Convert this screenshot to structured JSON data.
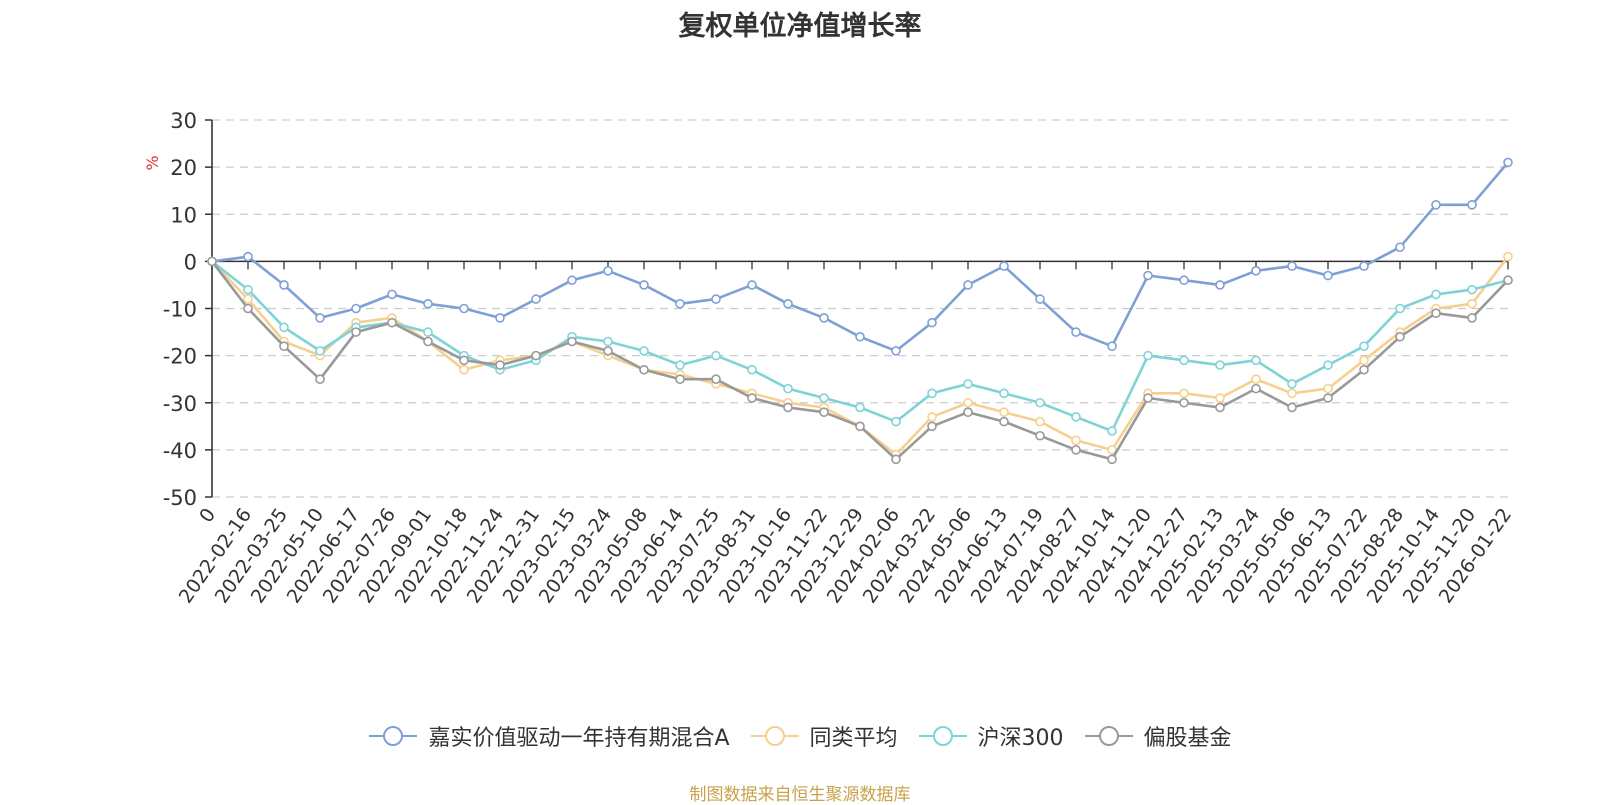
{
  "chart_data": {
    "type": "line",
    "title": "复权单位净值增长率",
    "ylabel": "%",
    "xlabel": "",
    "ylim": [
      -50,
      30
    ],
    "yticks": [
      30,
      20,
      10,
      0,
      -10,
      -20,
      -30,
      -40,
      -50
    ],
    "x_tick_labels": [
      "0",
      "2022-02-16",
      "2022-03-25",
      "2022-05-10",
      "2022-06-17",
      "2022-07-26",
      "2022-09-01",
      "2022-10-18",
      "2022-11-24",
      "2022-12-31",
      "2023-02-15",
      "2023-03-24",
      "2023-05-08",
      "2023-06-14",
      "2023-07-25",
      "2023-08-31",
      "2023-10-16",
      "2023-11-22",
      "2023-12-29",
      "2024-02-06",
      "2024-03-22",
      "2024-05-06",
      "2024-06-13",
      "2024-07-19",
      "2024-08-27",
      "2024-10-14",
      "2024-11-20",
      "2024-12-27",
      "2025-02-13",
      "2025-03-24",
      "2025-05-06",
      "2025-06-13",
      "2025-07-22",
      "2025-08-28",
      "2025-10-14",
      "2025-11-20",
      "2026-01-22"
    ],
    "x_index": [
      0,
      1,
      2,
      3,
      4,
      5,
      6,
      7,
      8,
      9,
      10,
      11,
      12,
      13,
      14,
      15,
      16,
      17,
      18,
      19,
      20,
      21,
      22,
      23,
      24,
      25,
      26,
      27,
      28,
      29,
      30,
      31,
      32,
      33,
      34,
      35,
      36
    ],
    "series": [
      {
        "name": "嘉实价值驱动一年持有期混合A",
        "color": "#7f9fd6",
        "values": [
          0,
          1,
          -5,
          -12,
          -10,
          -7,
          -9,
          -10,
          -12,
          -8,
          -4,
          -2,
          -5,
          -9,
          -8,
          -5,
          -9,
          -12,
          -16,
          -19,
          -13,
          -5,
          -1,
          -8,
          -15,
          -18,
          -3,
          -4,
          -5,
          -2,
          -1,
          -3,
          -1,
          3,
          12,
          12,
          21
        ]
      },
      {
        "name": "同类平均",
        "color": "#f7cf8e",
        "values": [
          0,
          -8,
          -17,
          -20,
          -13,
          -12,
          -17,
          -23,
          -21,
          -20,
          -17,
          -20,
          -23,
          -24,
          -26,
          -28,
          -30,
          -31,
          -35,
          -41,
          -33,
          -30,
          -32,
          -34,
          -38,
          -40,
          -28,
          -28,
          -29,
          -25,
          -28,
          -27,
          -21,
          -15,
          -10,
          -9,
          1
        ]
      },
      {
        "name": "沪深300",
        "color": "#7fd3d6",
        "values": [
          0,
          -6,
          -14,
          -19,
          -14,
          -13,
          -15,
          -20,
          -23,
          -21,
          -16,
          -17,
          -19,
          -22,
          -20,
          -23,
          -27,
          -29,
          -31,
          -34,
          -28,
          -26,
          -28,
          -30,
          -33,
          -36,
          -20,
          -21,
          -22,
          -21,
          -26,
          -22,
          -18,
          -10,
          -7,
          -6,
          -4
        ]
      },
      {
        "name": "偏股基金",
        "color": "#999999",
        "values": [
          0,
          -10,
          -18,
          -25,
          -15,
          -13,
          -17,
          -21,
          -22,
          -20,
          -17,
          -19,
          -23,
          -25,
          -25,
          -29,
          -31,
          -32,
          -35,
          -42,
          -35,
          -32,
          -34,
          -37,
          -40,
          -42,
          -29,
          -30,
          -31,
          -27,
          -31,
          -29,
          -23,
          -16,
          -11,
          -12,
          -4
        ]
      }
    ]
  },
  "legend": [
    {
      "label": "嘉实价值驱动一年持有期混合A",
      "color": "#7f9fd6"
    },
    {
      "label": "同类平均",
      "color": "#f7cf8e"
    },
    {
      "label": "沪深300",
      "color": "#7fd3d6"
    },
    {
      "label": "偏股基金",
      "color": "#999999"
    }
  ],
  "source": "制图数据来自恒生聚源数据库"
}
